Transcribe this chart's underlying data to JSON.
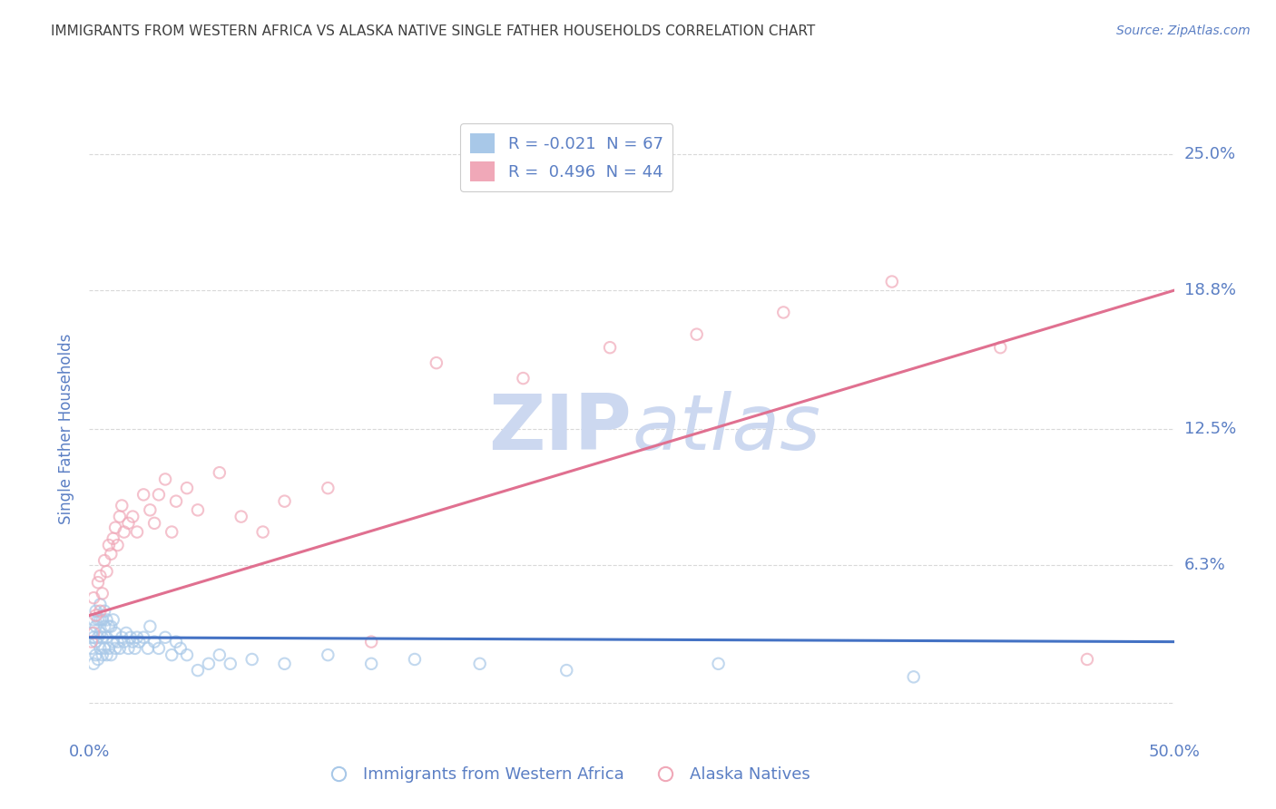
{
  "title": "IMMIGRANTS FROM WESTERN AFRICA VS ALASKA NATIVE SINGLE FATHER HOUSEHOLDS CORRELATION CHART",
  "source": "Source: ZipAtlas.com",
  "ylabel": "Single Father Households",
  "legend_label_bottom": [
    "Immigrants from Western Africa",
    "Alaska Natives"
  ],
  "ytick_values": [
    0.0,
    0.063,
    0.125,
    0.188,
    0.25
  ],
  "ytick_labels": [
    "",
    "6.3%",
    "12.5%",
    "18.8%",
    "25.0%"
  ],
  "xlim": [
    0.0,
    0.5
  ],
  "ylim": [
    -0.015,
    0.265
  ],
  "background_color": "#ffffff",
  "grid_color": "#d0d0d0",
  "title_color": "#404040",
  "axis_label_color": "#5b7fc4",
  "blue_scatter_color": "#a8c8e8",
  "pink_scatter_color": "#f0a8b8",
  "blue_line_color": "#4472c4",
  "pink_line_color": "#e07090",
  "blue_r": -0.021,
  "blue_n": 67,
  "pink_r": 0.496,
  "pink_n": 44,
  "watermark_color": "#ccd8f0",
  "blue_scatter_x": [
    0.001,
    0.001,
    0.002,
    0.002,
    0.002,
    0.003,
    0.003,
    0.003,
    0.003,
    0.004,
    0.004,
    0.004,
    0.005,
    0.005,
    0.005,
    0.005,
    0.006,
    0.006,
    0.006,
    0.007,
    0.007,
    0.007,
    0.008,
    0.008,
    0.008,
    0.009,
    0.009,
    0.01,
    0.01,
    0.011,
    0.011,
    0.012,
    0.012,
    0.013,
    0.014,
    0.015,
    0.016,
    0.017,
    0.018,
    0.019,
    0.02,
    0.021,
    0.022,
    0.023,
    0.025,
    0.027,
    0.028,
    0.03,
    0.032,
    0.035,
    0.038,
    0.04,
    0.042,
    0.045,
    0.05,
    0.055,
    0.06,
    0.065,
    0.075,
    0.09,
    0.11,
    0.13,
    0.15,
    0.18,
    0.22,
    0.29,
    0.38
  ],
  "blue_scatter_y": [
    0.025,
    0.032,
    0.018,
    0.03,
    0.038,
    0.022,
    0.028,
    0.035,
    0.042,
    0.02,
    0.03,
    0.038,
    0.025,
    0.032,
    0.038,
    0.045,
    0.022,
    0.03,
    0.038,
    0.025,
    0.035,
    0.042,
    0.022,
    0.03,
    0.038,
    0.025,
    0.035,
    0.022,
    0.035,
    0.028,
    0.038,
    0.025,
    0.032,
    0.028,
    0.025,
    0.03,
    0.028,
    0.032,
    0.025,
    0.03,
    0.028,
    0.025,
    0.03,
    0.028,
    0.03,
    0.025,
    0.035,
    0.028,
    0.025,
    0.03,
    0.022,
    0.028,
    0.025,
    0.022,
    0.015,
    0.018,
    0.022,
    0.018,
    0.02,
    0.018,
    0.022,
    0.018,
    0.02,
    0.018,
    0.015,
    0.018,
    0.012
  ],
  "pink_scatter_x": [
    0.001,
    0.002,
    0.002,
    0.003,
    0.004,
    0.005,
    0.005,
    0.006,
    0.007,
    0.008,
    0.009,
    0.01,
    0.011,
    0.012,
    0.013,
    0.014,
    0.015,
    0.016,
    0.018,
    0.02,
    0.022,
    0.025,
    0.028,
    0.03,
    0.032,
    0.035,
    0.038,
    0.04,
    0.045,
    0.05,
    0.06,
    0.07,
    0.08,
    0.09,
    0.11,
    0.13,
    0.16,
    0.2,
    0.24,
    0.28,
    0.32,
    0.37,
    0.42,
    0.46
  ],
  "pink_scatter_y": [
    0.028,
    0.032,
    0.048,
    0.04,
    0.055,
    0.042,
    0.058,
    0.05,
    0.065,
    0.06,
    0.072,
    0.068,
    0.075,
    0.08,
    0.072,
    0.085,
    0.09,
    0.078,
    0.082,
    0.085,
    0.078,
    0.095,
    0.088,
    0.082,
    0.095,
    0.102,
    0.078,
    0.092,
    0.098,
    0.088,
    0.105,
    0.085,
    0.078,
    0.092,
    0.098,
    0.028,
    0.155,
    0.148,
    0.162,
    0.168,
    0.178,
    0.192,
    0.162,
    0.02
  ]
}
